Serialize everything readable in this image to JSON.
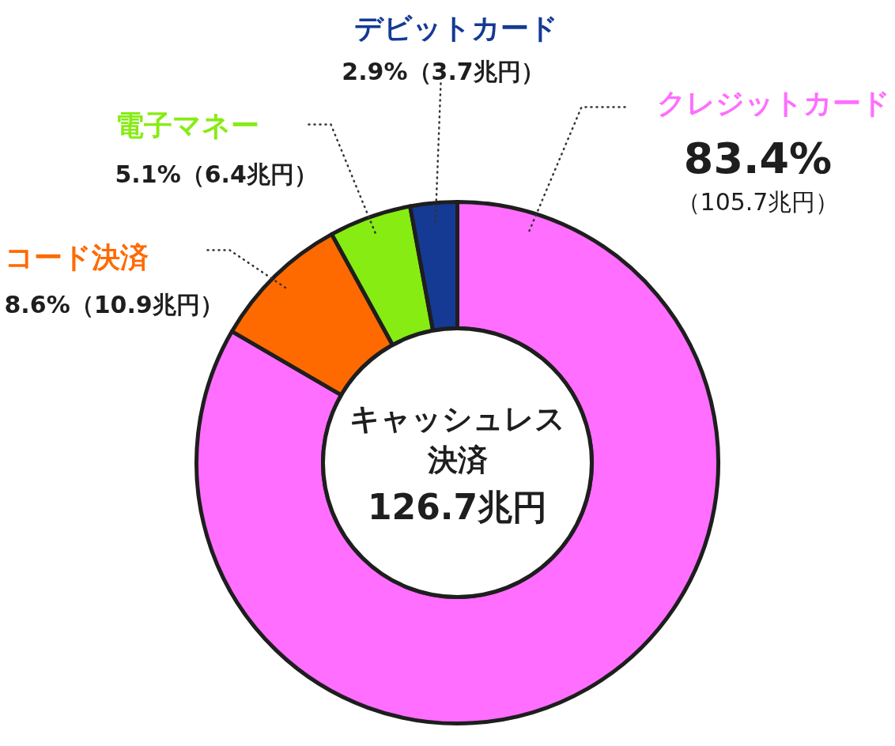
{
  "chart_data": {
    "type": "donut",
    "title": "キャッシュレス決済",
    "subtitle": "126.7兆円",
    "categories": [
      "クレジットカード",
      "コード決済",
      "電子マネー",
      "デビットカード"
    ],
    "values": [
      83.4,
      8.6,
      5.1,
      2.9
    ],
    "colors": [
      "#ff6eff",
      "#ff6a00",
      "#86ec12",
      "#143a94"
    ],
    "value_labels": [
      "83.4%\n（105.7兆円）",
      "8.6%（10.9兆円）",
      "5.1%（6.4兆円）",
      "2.9%（3.7兆円）"
    ]
  }
}
